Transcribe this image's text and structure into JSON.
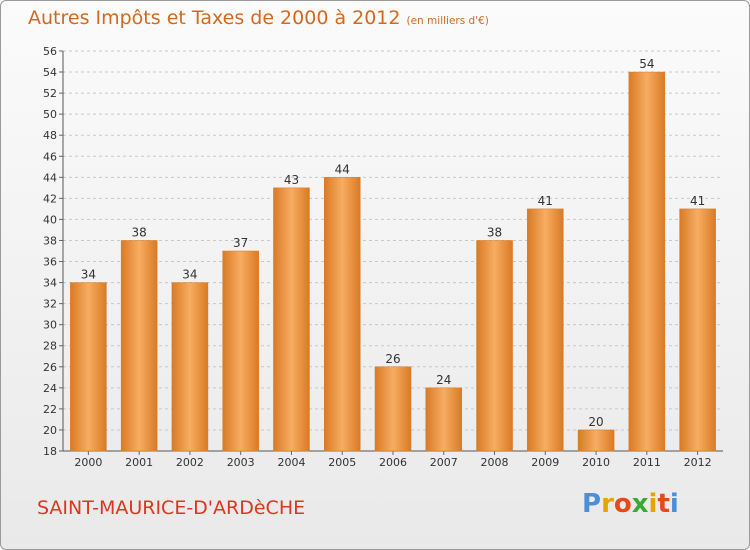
{
  "header": {
    "title": "Autres Impôts et Taxes de 2000 à 2012",
    "subtitle": "(en milliers d'€)"
  },
  "footer": {
    "place": "SAINT-MAURICE-D'ARDèCHE",
    "logo_letters": [
      "P",
      "r",
      "o",
      "x",
      "i",
      "t",
      "i"
    ],
    "logo_colors": [
      "#4a90d9",
      "#e6a400",
      "#e64a19",
      "#3aa935",
      "#e6a400",
      "#e64a19",
      "#4a90d9"
    ]
  },
  "colors": {
    "bar": "#f0943c",
    "bar_light": "#f7ad62",
    "bar_dark": "#d97a25",
    "grid": "#c8c8c8",
    "text": "#333333"
  },
  "chart_data": {
    "type": "bar",
    "categories": [
      "2000",
      "2001",
      "2002",
      "2003",
      "2004",
      "2005",
      "2006",
      "2007",
      "2008",
      "2009",
      "2010",
      "2011",
      "2012"
    ],
    "values": [
      34,
      38,
      34,
      37,
      43,
      44,
      26,
      24,
      38,
      41,
      20,
      54,
      41
    ],
    "title": "Autres Impôts et Taxes de 2000 à 2012",
    "subtitle": "(en milliers d'€)",
    "xlabel": "",
    "ylabel": "",
    "ylim": [
      18,
      56
    ],
    "yticks": [
      18,
      20,
      22,
      24,
      26,
      28,
      30,
      32,
      34,
      36,
      38,
      40,
      42,
      44,
      46,
      48,
      50,
      52,
      54,
      56
    ],
    "grid": true,
    "legend": "none"
  }
}
